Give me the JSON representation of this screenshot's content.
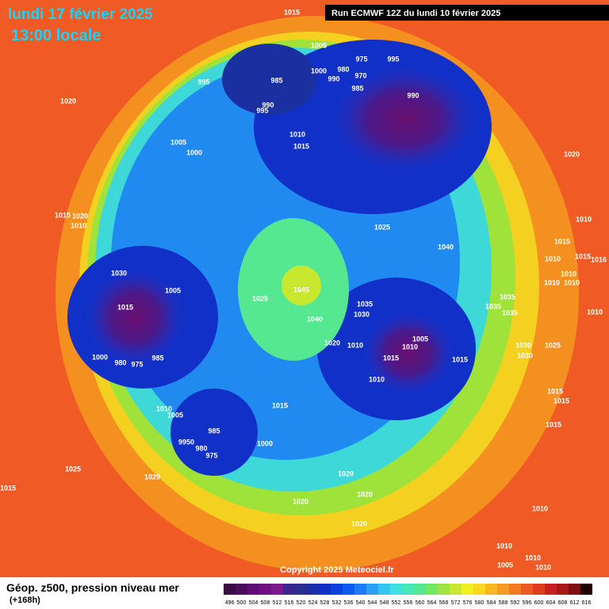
{
  "header": {
    "date": "lundi 17 février 2025",
    "time": "13:00 locale",
    "run": "Run ECMWF 12Z du lundi 10 février 2025"
  },
  "map": {
    "isobar_labels": [
      "1015",
      "1005",
      "975",
      "995",
      "1000",
      "980",
      "990",
      "970",
      "985",
      "995",
      "985",
      "990",
      "1020",
      "990",
      "995",
      "1010",
      "1015",
      "1005",
      "1000",
      "1020",
      "1015",
      "1020",
      "1010",
      "1025",
      "1010",
      "1040",
      "1015",
      "1015",
      "1010",
      "1016",
      "1030",
      "1010",
      "1010",
      "1010",
      "1005",
      "1045",
      "1025",
      "1035",
      "1015",
      "1035",
      "1035",
      "1035",
      "1010",
      "1030",
      "1040",
      "1005",
      "1020",
      "1010",
      "1010",
      "1030",
      "1025",
      "1030",
      "1000",
      "980",
      "975",
      "985",
      "1015",
      "1015",
      "1010",
      "1015",
      "1015",
      "1010",
      "1005",
      "1015",
      "1015",
      "985",
      "9950",
      "1000",
      "980",
      "975",
      "1025",
      "1020",
      "1020",
      "1015",
      "1020",
      "1020",
      "1010",
      "1020",
      "1010",
      "1010",
      "1005",
      "1010"
    ],
    "copyright": "Copyright 2025 Meteociel.fr"
  },
  "footer": {
    "title": "Géop. z500, pression niveau mer",
    "lead_time": "(+168h)"
  },
  "legend": {
    "ticks": [
      496,
      500,
      504,
      508,
      512,
      516,
      520,
      524,
      528,
      532,
      536,
      540,
      544,
      548,
      552,
      556,
      560,
      564,
      568,
      572,
      576,
      580,
      584,
      588,
      592,
      596,
      600,
      604,
      608,
      612,
      616
    ]
  }
}
